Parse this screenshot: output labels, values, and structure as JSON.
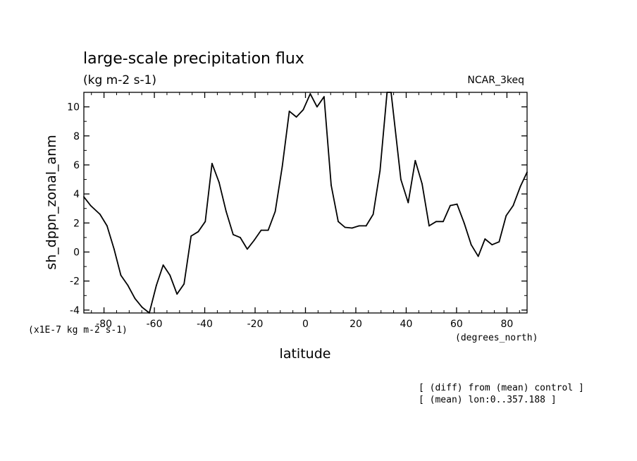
{
  "chart_data": {
    "type": "line",
    "title": "large-scale precipitation flux",
    "subtitle": "(kg m-2 s-1)",
    "model_label": "NCAR_3keq",
    "xlabel": "latitude",
    "xunits": "(degrees_north)",
    "ylabel": "sh_dppn_zonal_anm",
    "yscale_note": "(x1E-7 kg m-2 s-1)",
    "xlim": [
      -88,
      88
    ],
    "ylim": [
      -4.2,
      11
    ],
    "xticks": [
      -80,
      -60,
      -40,
      -20,
      0,
      20,
      40,
      60,
      80
    ],
    "yticks": [
      -4,
      -2,
      0,
      2,
      4,
      6,
      8,
      10
    ],
    "grid": false,
    "footnotes": [
      "[ (diff) from (mean) control ]",
      "[ (mean) lon:0..357.188 ]"
    ],
    "series": [
      {
        "x": [
          -88.0,
          -85.3,
          -81.6,
          -78.8,
          -76.0,
          -73.3,
          -70.5,
          -67.7,
          -64.9,
          -62.0,
          -59.2,
          -56.5,
          -53.8,
          -51.0,
          -48.2,
          -45.4,
          -42.6,
          -39.8,
          -37.1,
          -34.3,
          -31.5,
          -28.7,
          -25.9,
          -23.1,
          -20.4,
          -17.6,
          -14.8,
          -12.0,
          -9.2,
          -6.4,
          -3.6,
          -0.9,
          1.9,
          4.6,
          7.4,
          10.2,
          13.0,
          15.7,
          18.5,
          21.3,
          24.1,
          26.9,
          29.6,
          32.4,
          34.0,
          37.9,
          40.8,
          43.6,
          46.3,
          49.1,
          51.9,
          54.7,
          57.5,
          60.2,
          63.0,
          65.8,
          68.6,
          71.3,
          74.1,
          76.9,
          79.7,
          82.5,
          85.3,
          88.0
        ],
        "y": [
          3.8,
          3.2,
          2.6,
          1.8,
          0.2,
          -1.6,
          -2.3,
          -3.2,
          -3.8,
          -4.2,
          -2.3,
          -0.9,
          -1.6,
          -2.9,
          -2.2,
          1.1,
          1.4,
          2.1,
          6.1,
          4.8,
          2.8,
          1.2,
          1.0,
          0.2,
          0.8,
          1.5,
          1.5,
          2.8,
          5.9,
          9.7,
          9.3,
          9.8,
          10.9,
          10.0,
          10.7,
          4.6,
          2.1,
          1.7,
          1.65,
          1.8,
          1.8,
          2.6,
          5.6,
          11.0,
          11.0,
          5.0,
          3.4,
          6.3,
          4.7,
          1.8,
          2.1,
          2.1,
          3.2,
          3.3,
          2.0,
          0.5,
          -0.3,
          0.9,
          0.5,
          0.7,
          2.5,
          3.2,
          4.5,
          5.5
        ]
      }
    ]
  }
}
